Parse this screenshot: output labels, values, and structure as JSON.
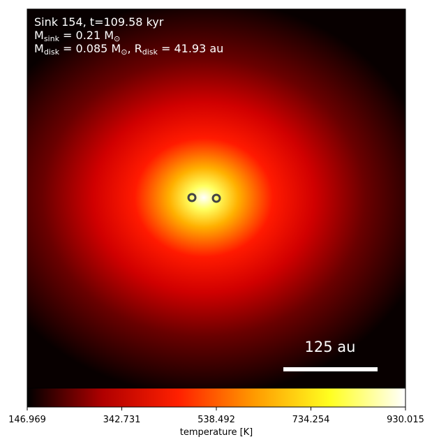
{
  "chart_data": {
    "type": "heatmap",
    "annotation_lines": [
      [
        {
          "text": "Sink 154, t=109.58 kyr",
          "sub": false
        }
      ],
      [
        {
          "text": "M",
          "sub": false
        },
        {
          "text": "sink",
          "sub": true
        },
        {
          "text": " = 0.21 M",
          "sub": false
        },
        {
          "text": "⊙",
          "sub": true
        }
      ],
      [
        {
          "text": "M",
          "sub": false
        },
        {
          "text": "disk",
          "sub": true
        },
        {
          "text": " = 0.085 M",
          "sub": false
        },
        {
          "text": "⊙",
          "sub": true
        },
        {
          "text": ", R",
          "sub": false
        },
        {
          "text": "disk",
          "sub": true
        },
        {
          "text": " = 41.93 au",
          "sub": false
        }
      ]
    ],
    "scale_bar_label": "125 au",
    "colorbar": {
      "label": "temperature [K]",
      "lim": [
        146.969,
        930.015
      ],
      "ticks": [
        146.969,
        342.731,
        538.492,
        734.254,
        930.015
      ],
      "colormap": [
        "#000000",
        "#b00000",
        "#ff2000",
        "#ff9a00",
        "#ffff20",
        "#ffffff"
      ]
    }
  }
}
